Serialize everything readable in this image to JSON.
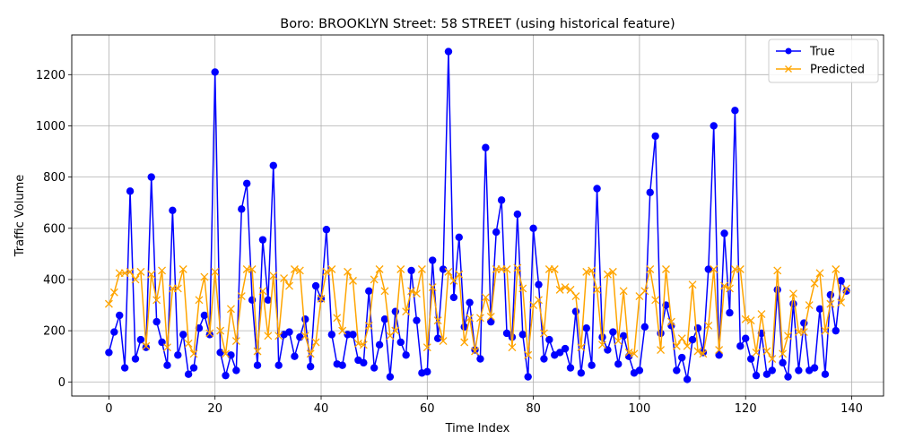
{
  "chart_data": {
    "type": "line",
    "title": "Boro: BROOKLYN Street: 58 STREET (using historical feature)",
    "xlabel": "Time Index",
    "ylabel": "Traffic Volume",
    "xlim": [
      -7,
      146
    ],
    "ylim": [
      -55,
      1355
    ],
    "xticks": [
      0,
      20,
      40,
      60,
      80,
      100,
      120,
      140
    ],
    "yticks": [
      0,
      200,
      400,
      600,
      800,
      1000,
      1200
    ],
    "grid": true,
    "legend": "top-right",
    "x": [
      0,
      1,
      2,
      3,
      4,
      5,
      6,
      7,
      8,
      9,
      10,
      11,
      12,
      13,
      14,
      15,
      16,
      17,
      18,
      19,
      20,
      21,
      22,
      23,
      24,
      25,
      26,
      27,
      28,
      29,
      30,
      31,
      32,
      33,
      34,
      35,
      36,
      37,
      38,
      39,
      40,
      41,
      42,
      43,
      44,
      45,
      46,
      47,
      48,
      49,
      50,
      51,
      52,
      53,
      54,
      55,
      56,
      57,
      58,
      59,
      60,
      61,
      62,
      63,
      64,
      65,
      66,
      67,
      68,
      69,
      70,
      71,
      72,
      73,
      74,
      75,
      76,
      77,
      78,
      79,
      80,
      81,
      82,
      83,
      84,
      85,
      86,
      87,
      88,
      89,
      90,
      91,
      92,
      93,
      94,
      95,
      96,
      97,
      98,
      99,
      100,
      101,
      102,
      103,
      104,
      105,
      106,
      107,
      108,
      109,
      110,
      111,
      112,
      113,
      114,
      115,
      116,
      117,
      118,
      119,
      120,
      121,
      122,
      123,
      124,
      125,
      126,
      127,
      128,
      129,
      130,
      131,
      132,
      133,
      134,
      135,
      136,
      137,
      138,
      139
    ],
    "series": [
      {
        "name": "True",
        "color": "#0000ff",
        "marker": "circle",
        "values": [
          115,
          195,
          260,
          55,
          745,
          90,
          165,
          135,
          800,
          235,
          155,
          65,
          670,
          105,
          185,
          30,
          55,
          210,
          260,
          185,
          1210,
          115,
          25,
          105,
          45,
          675,
          775,
          320,
          65,
          555,
          320,
          845,
          65,
          185,
          195,
          100,
          175,
          245,
          60,
          375,
          325,
          595,
          185,
          70,
          65,
          185,
          185,
          85,
          75,
          355,
          55,
          145,
          245,
          20,
          275,
          155,
          105,
          435,
          240,
          35,
          40,
          475,
          170,
          440,
          1290,
          330,
          565,
          215,
          310,
          125,
          90,
          915,
          235,
          585,
          710,
          190,
          175,
          655,
          185,
          20,
          600,
          380,
          90,
          165,
          105,
          115,
          130,
          55,
          275,
          35,
          210,
          65,
          755,
          175,
          125,
          195,
          70,
          180,
          100,
          35,
          45,
          215,
          740,
          960,
          190,
          300,
          220,
          45,
          95,
          10,
          165,
          210,
          115,
          440,
          1000,
          105,
          580,
          270,
          1060,
          140,
          170,
          90,
          25,
          190,
          30,
          45,
          360,
          75,
          20,
          305,
          45,
          230,
          45,
          55,
          285,
          30,
          340,
          200,
          395,
          355
        ]
      },
      {
        "name": "Predicted",
        "color": "#ffa500",
        "marker": "x",
        "values": [
          305,
          350,
          425,
          425,
          430,
          400,
          430,
          140,
          420,
          320,
          435,
          135,
          365,
          365,
          440,
          150,
          110,
          320,
          410,
          190,
          430,
          200,
          110,
          285,
          160,
          335,
          440,
          440,
          120,
          355,
          180,
          415,
          180,
          405,
          375,
          440,
          435,
          180,
          110,
          155,
          325,
          430,
          440,
          250,
          200,
          430,
          395,
          150,
          145,
          220,
          400,
          440,
          355,
          180,
          200,
          440,
          275,
          355,
          345,
          440,
          135,
          370,
          240,
          160,
          430,
          395,
          420,
          155,
          250,
          120,
          250,
          330,
          255,
          440,
          440,
          440,
          135,
          445,
          365,
          105,
          300,
          320,
          190,
          440,
          440,
          360,
          370,
          360,
          335,
          135,
          430,
          435,
          360,
          145,
          420,
          430,
          160,
          355,
          115,
          110,
          335,
          355,
          440,
          320,
          125,
          440,
          235,
          140,
          170,
          140,
          380,
          120,
          110,
          220,
          440,
          125,
          375,
          365,
          440,
          440,
          245,
          240,
          115,
          265,
          120,
          90,
          435,
          110,
          180,
          345,
          195,
          195,
          300,
          385,
          425,
          200,
          305,
          440,
          310,
          365
        ]
      }
    ]
  }
}
